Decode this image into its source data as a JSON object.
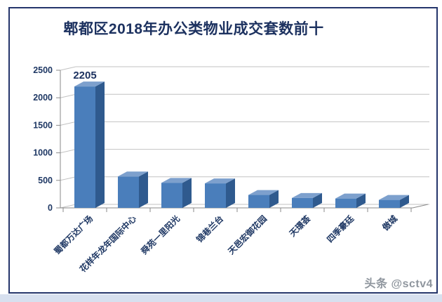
{
  "page": {
    "watermark": "头条 @sctv4"
  },
  "chart_data": {
    "type": "bar",
    "style": "3d-column",
    "title": "郫都区2018年办公类物业成交套数前十",
    "categories": [
      "蜀都万达广场",
      "花样年龙年国际中心",
      "舜苑一里阳光",
      "锦巷兰台",
      "天邑宏御花园",
      "天璟荟",
      "四季豪廷",
      "傲城"
    ],
    "values": [
      2205,
      570,
      455,
      445,
      235,
      180,
      170,
      145
    ],
    "data_label": {
      "index": 0,
      "text": "2205"
    },
    "xlabel": "",
    "ylabel": "",
    "ylim": [
      0,
      2500
    ],
    "yticks": [
      0,
      500,
      1000,
      1500,
      2000,
      2500
    ],
    "grid": true,
    "legend": "none",
    "colors": {
      "bar_front": "#4a7ebb",
      "bar_top": "#7da0cd",
      "bar_side": "#2f5a8e",
      "title_text": "#1d3260",
      "axis_text": "#1f3864",
      "gridline": "#c2c2c2",
      "axis_line": "#8a8a8a",
      "card_border": "#24356b",
      "bottom_strip": "#d7e0ef",
      "watermark_text": "#8f969e"
    }
  }
}
